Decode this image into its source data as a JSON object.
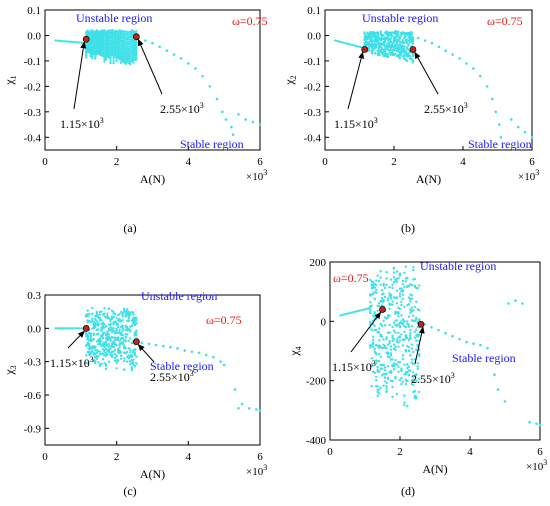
{
  "chart_data": [
    {
      "type": "scatter",
      "panel_label": "(a)",
      "xlabel": "A(N)",
      "ylabel": "χ",
      "ylabel_sub": "1",
      "x_multiplier": "×10",
      "x_multiplier_exp": "3",
      "xlim": [
        0,
        6000
      ],
      "ylim": [
        -0.45,
        0.1
      ],
      "xticks": [
        0,
        2000,
        4000,
        6000
      ],
      "xtick_labels": [
        "0",
        "2",
        "4",
        "6"
      ],
      "yticks": [
        0.1,
        0.0,
        -0.1,
        -0.2,
        -0.3,
        -0.4
      ],
      "ytick_labels": [
        "0.1",
        "0.0",
        "-0.1",
        "-0.2",
        "-0.3",
        "-0.4"
      ],
      "omega_label": "ω=0.75",
      "unstable_label": "Unstable region",
      "stable_label": "Stable region",
      "annotations": [
        {
          "text": "1.15×10",
          "exp": "3",
          "x": 1150,
          "y": -0.015
        },
        {
          "text": "2.55×10",
          "exp": "3",
          "x": 2550,
          "y": -0.005
        }
      ],
      "stable_before": {
        "x_start": 300,
        "x_end": 1150,
        "y_start": -0.02,
        "y_end": -0.03
      },
      "unstable_band": {
        "x_start": 1150,
        "x_end": 2550,
        "y_top": 0.02,
        "y_bottom_start": -0.09,
        "y_bottom_end": -0.13
      },
      "stable_after": [
        [
          2600,
          -0.01
        ],
        [
          2800,
          -0.02
        ],
        [
          3000,
          -0.03
        ],
        [
          3200,
          -0.045
        ],
        [
          3400,
          -0.06
        ],
        [
          3600,
          -0.075
        ],
        [
          3800,
          -0.09
        ],
        [
          4000,
          -0.11
        ],
        [
          4200,
          -0.13
        ],
        [
          4400,
          -0.16
        ],
        [
          4600,
          -0.2
        ],
        [
          4800,
          -0.25
        ],
        [
          4950,
          -0.3
        ],
        [
          5050,
          -0.33
        ],
        [
          5200,
          -0.36
        ],
        [
          5250,
          -0.39
        ],
        [
          5400,
          -0.31
        ],
        [
          5600,
          -0.33
        ],
        [
          5800,
          -0.34
        ],
        [
          6000,
          -0.35
        ]
      ]
    },
    {
      "type": "scatter",
      "panel_label": "(b)",
      "xlabel": "A(N)",
      "ylabel": "χ",
      "ylabel_sub": "2",
      "x_multiplier": "×10",
      "x_multiplier_exp": "3",
      "xlim": [
        0,
        6000
      ],
      "ylim": [
        -0.45,
        0.1
      ],
      "xticks": [
        0,
        2000,
        4000,
        6000
      ],
      "xtick_labels": [
        "0",
        "2",
        "4",
        "6"
      ],
      "yticks": [
        0.1,
        0.0,
        -0.1,
        -0.2,
        -0.3,
        -0.4
      ],
      "ytick_labels": [
        "0.1",
        "0.0",
        "-0.1",
        "-0.2",
        "-0.3",
        "-0.4"
      ],
      "omega_label": "ω=0.75",
      "unstable_label": "Unstable region",
      "stable_label": "Stable region",
      "annotations": [
        {
          "text": "1.15×10",
          "exp": "3",
          "x": 1150,
          "y": -0.055
        },
        {
          "text": "2.55×10",
          "exp": "3",
          "x": 2550,
          "y": -0.055
        }
      ],
      "stable_before": {
        "x_start": 300,
        "x_end": 1150,
        "y_start": -0.02,
        "y_end": -0.05
      },
      "unstable_band": {
        "x_start": 1150,
        "x_end": 2550,
        "y_top": 0.02,
        "y_bottom_start": -0.07,
        "y_bottom_end": -0.12
      },
      "stable_after": [
        [
          2700,
          -0.01
        ],
        [
          2900,
          -0.02
        ],
        [
          3100,
          -0.03
        ],
        [
          3300,
          -0.045
        ],
        [
          3500,
          -0.06
        ],
        [
          3700,
          -0.075
        ],
        [
          3900,
          -0.09
        ],
        [
          4100,
          -0.11
        ],
        [
          4300,
          -0.13
        ],
        [
          4500,
          -0.16
        ],
        [
          4700,
          -0.2
        ],
        [
          4850,
          -0.25
        ],
        [
          4950,
          -0.3
        ],
        [
          5050,
          -0.35
        ],
        [
          5100,
          -0.4
        ],
        [
          5400,
          -0.33
        ],
        [
          5600,
          -0.36
        ],
        [
          5800,
          -0.38
        ],
        [
          6000,
          -0.4
        ]
      ]
    },
    {
      "type": "scatter",
      "panel_label": "(c)",
      "xlabel": "A(N)",
      "ylabel": "χ",
      "ylabel_sub": "3",
      "x_multiplier": "×10",
      "x_multiplier_exp": "3",
      "xlim": [
        0,
        6000
      ],
      "ylim": [
        -1.05,
        0.3
      ],
      "xticks": [
        0,
        2000,
        4000,
        6000
      ],
      "xtick_labels": [
        "0",
        "2",
        "4",
        "6"
      ],
      "yticks": [
        0.3,
        0.0,
        -0.3,
        -0.6,
        -0.9
      ],
      "ytick_labels": [
        "0.3",
        "0.0",
        "-0.3",
        "-0.6",
        "-0.9"
      ],
      "omega_label": "ω=0.75",
      "unstable_label": "Unstable region",
      "stable_label": "Stable region",
      "annotations": [
        {
          "text": "1.15×10",
          "exp": "3",
          "x": 1150,
          "y": 0.0
        },
        {
          "text": "2.55×10",
          "exp": "3",
          "x": 2550,
          "y": -0.12
        }
      ],
      "stable_before": {
        "x_start": 300,
        "x_end": 1150,
        "y_start": 0.0,
        "y_end": 0.0
      },
      "unstable_band": {
        "x_start": 1150,
        "x_end": 2550,
        "y_top": 0.2,
        "y_bottom_start": -0.35,
        "y_bottom_end": -0.4
      },
      "stable_after": [
        [
          2700,
          -0.13
        ],
        [
          2900,
          -0.14
        ],
        [
          3100,
          -0.15
        ],
        [
          3300,
          -0.16
        ],
        [
          3500,
          -0.17
        ],
        [
          3700,
          -0.18
        ],
        [
          3900,
          -0.2
        ],
        [
          4100,
          -0.21
        ],
        [
          4300,
          -0.22
        ],
        [
          4500,
          -0.24
        ],
        [
          4700,
          -0.26
        ],
        [
          4900,
          -0.3
        ],
        [
          5000,
          -0.33
        ],
        [
          5300,
          -0.55
        ],
        [
          5400,
          -0.72
        ],
        [
          5500,
          -0.68
        ],
        [
          5700,
          -0.72
        ],
        [
          5900,
          -0.73
        ],
        [
          6000,
          -0.74
        ]
      ]
    },
    {
      "type": "scatter",
      "panel_label": "(d)",
      "xlabel": "A(N)",
      "ylabel": "χ",
      "ylabel_sub": "4",
      "x_multiplier": "×10",
      "x_multiplier_exp": "3",
      "xlim": [
        0,
        6000
      ],
      "ylim": [
        -400,
        200
      ],
      "xticks": [
        0,
        2000,
        4000,
        6000
      ],
      "xtick_labels": [
        "0",
        "2",
        "4",
        "6"
      ],
      "yticks": [
        200,
        0,
        -200,
        -400
      ],
      "ytick_labels": [
        "200",
        "0",
        "-200",
        "-400"
      ],
      "omega_label": "ω=0.75",
      "unstable_label": "Unstable region",
      "stable_label": "Stable region",
      "annotations": [
        {
          "text": "1.15×10",
          "exp": "3",
          "x": 1500,
          "y": 40
        },
        {
          "text": "2.55×10",
          "exp": "3",
          "x": 2600,
          "y": -10
        }
      ],
      "stable_before": {
        "x_start": 300,
        "x_end": 1150,
        "y_start": 20,
        "y_end": 45
      },
      "unstable_band": {
        "x_start": 1150,
        "x_end": 2550,
        "y_top": 200,
        "y_bottom_start": -260,
        "y_bottom_end": -300
      },
      "stable_after": [
        [
          2700,
          -10
        ],
        [
          2900,
          -20
        ],
        [
          3100,
          -30
        ],
        [
          3300,
          -40
        ],
        [
          3500,
          -50
        ],
        [
          3700,
          -60
        ],
        [
          3900,
          -70
        ],
        [
          4100,
          -75
        ],
        [
          4300,
          -80
        ],
        [
          4500,
          -90
        ],
        [
          4700,
          -180
        ],
        [
          4800,
          -230
        ],
        [
          5000,
          -270
        ],
        [
          5100,
          60
        ],
        [
          5300,
          70
        ],
        [
          5500,
          60
        ],
        [
          5700,
          -340
        ],
        [
          5900,
          -345
        ],
        [
          6000,
          -350
        ]
      ]
    }
  ]
}
